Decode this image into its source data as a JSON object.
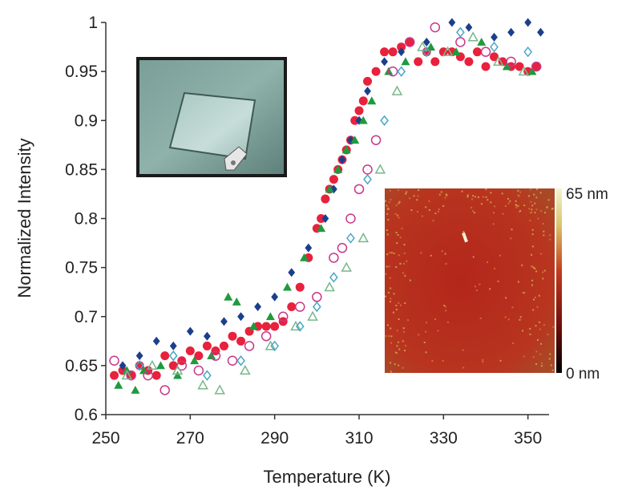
{
  "chart_data": {
    "type": "scatter",
    "title": "",
    "xlabel": "Temperature (K)",
    "ylabel": "Normalized Intensity",
    "xlim": [
      250,
      355
    ],
    "ylim": [
      0.6,
      1.0
    ],
    "x_ticks": [
      "250",
      "270",
      "290",
      "310",
      "330",
      "350"
    ],
    "y_ticks": [
      "0.6",
      "0.65",
      "0.7",
      "0.75",
      "0.8",
      "0.85",
      "0.9",
      "0.95",
      "1"
    ],
    "grid": false,
    "legend": "none",
    "series": [
      {
        "marker": "filled-circle",
        "color": "#e8213c",
        "x": [
          252,
          254,
          256,
          258,
          260,
          262,
          264,
          266,
          268,
          270,
          272,
          274,
          276,
          278,
          280,
          282,
          284,
          286,
          288,
          290,
          292,
          294,
          296,
          298,
          300,
          301,
          302,
          303,
          304,
          305,
          306,
          307,
          308,
          309,
          310,
          311,
          312,
          314,
          316,
          318,
          320,
          322,
          324,
          326,
          328,
          330,
          332,
          334,
          336,
          338,
          340,
          342,
          344,
          346,
          348,
          350,
          352
        ],
        "y": [
          0.64,
          0.645,
          0.64,
          0.65,
          0.645,
          0.64,
          0.66,
          0.65,
          0.655,
          0.665,
          0.66,
          0.67,
          0.665,
          0.67,
          0.68,
          0.675,
          0.685,
          0.69,
          0.69,
          0.69,
          0.695,
          0.71,
          0.73,
          0.76,
          0.79,
          0.8,
          0.82,
          0.83,
          0.84,
          0.85,
          0.86,
          0.87,
          0.88,
          0.9,
          0.91,
          0.92,
          0.94,
          0.95,
          0.97,
          0.97,
          0.975,
          0.98,
          0.96,
          0.97,
          0.96,
          0.97,
          0.97,
          0.965,
          0.96,
          0.97,
          0.955,
          0.965,
          0.96,
          0.955,
          0.955,
          0.95,
          0.955
        ]
      },
      {
        "marker": "filled-diamond",
        "color": "#1b3f8c",
        "x": [
          254,
          258,
          262,
          266,
          270,
          274,
          278,
          282,
          286,
          290,
          294,
          298,
          302,
          304,
          306,
          308,
          310,
          312,
          316,
          320,
          326,
          332,
          336,
          342,
          346,
          350,
          353
        ],
        "y": [
          0.65,
          0.66,
          0.675,
          0.67,
          0.685,
          0.68,
          0.695,
          0.7,
          0.71,
          0.72,
          0.745,
          0.77,
          0.8,
          0.83,
          0.86,
          0.88,
          0.9,
          0.93,
          0.96,
          0.97,
          0.98,
          1.0,
          0.995,
          0.985,
          0.99,
          1.0,
          0.99
        ]
      },
      {
        "marker": "filled-triangle",
        "color": "#1f9a3e",
        "x": [
          253,
          255,
          257,
          259,
          263,
          267,
          271,
          275,
          279,
          281,
          285,
          289,
          293,
          297,
          301,
          303,
          305,
          307,
          309,
          311,
          313,
          317,
          321,
          327,
          333,
          339,
          345,
          351
        ],
        "y": [
          0.63,
          0.645,
          0.625,
          0.645,
          0.65,
          0.64,
          0.655,
          0.66,
          0.72,
          0.715,
          0.69,
          0.7,
          0.73,
          0.76,
          0.79,
          0.83,
          0.85,
          0.87,
          0.88,
          0.9,
          0.92,
          0.95,
          0.96,
          0.975,
          0.97,
          0.98,
          0.955,
          0.95
        ]
      },
      {
        "marker": "open-circle",
        "color": "#c8378a",
        "x": [
          252,
          256,
          260,
          264,
          268,
          272,
          276,
          280,
          284,
          288,
          292,
          296,
          300,
          304,
          306,
          308,
          310,
          312,
          314,
          318,
          322,
          328,
          334,
          340,
          346,
          352
        ],
        "y": [
          0.655,
          0.64,
          0.64,
          0.625,
          0.65,
          0.645,
          0.66,
          0.655,
          0.67,
          0.68,
          0.7,
          0.71,
          0.72,
          0.76,
          0.77,
          0.8,
          0.83,
          0.85,
          0.88,
          0.95,
          0.98,
          0.995,
          0.98,
          0.97,
          0.96,
          0.955
        ]
      },
      {
        "marker": "open-triangle",
        "color": "#7ab68a",
        "x": [
          255,
          261,
          267,
          273,
          277,
          283,
          289,
          295,
          299,
          303,
          307,
          311,
          315,
          319,
          325,
          331,
          337,
          343,
          349
        ],
        "y": [
          0.64,
          0.65,
          0.645,
          0.63,
          0.625,
          0.645,
          0.67,
          0.69,
          0.7,
          0.73,
          0.75,
          0.78,
          0.85,
          0.93,
          0.975,
          0.97,
          0.985,
          0.96,
          0.95
        ]
      },
      {
        "marker": "open-diamond",
        "color": "#4aa6c6",
        "x": [
          258,
          266,
          274,
          282,
          290,
          296,
          300,
          304,
          308,
          312,
          316,
          320,
          326,
          334,
          342,
          350
        ],
        "y": [
          0.65,
          0.66,
          0.64,
          0.655,
          0.67,
          0.69,
          0.71,
          0.74,
          0.78,
          0.84,
          0.9,
          0.95,
          0.97,
          0.99,
          0.975,
          0.97
        ]
      }
    ],
    "insets": [
      {
        "kind": "photo",
        "description_icon": "glass-slide-photo"
      },
      {
        "kind": "afm-image",
        "colorbar_max_label": "65 nm",
        "colorbar_min_label": "0 nm"
      }
    ]
  }
}
